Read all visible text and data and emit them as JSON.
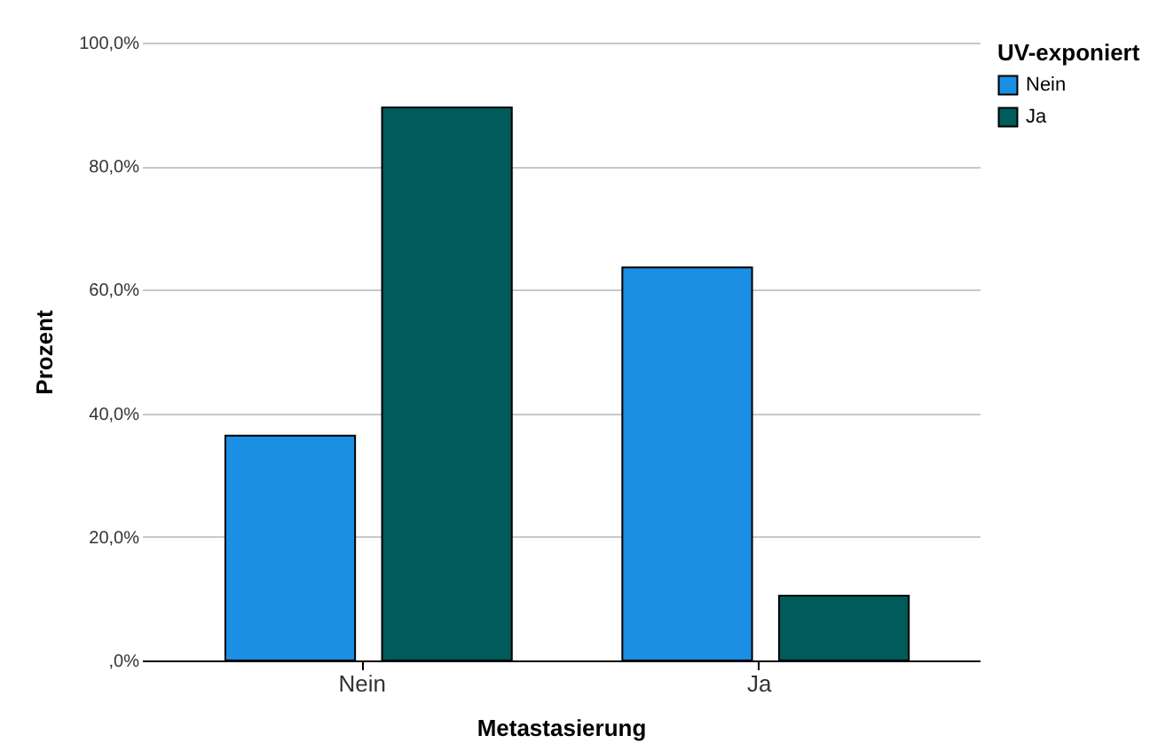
{
  "chart_data": {
    "type": "bar",
    "xlabel": "Metastasierung",
    "ylabel": "Prozent",
    "legend_title": "UV-exponiert",
    "categories": [
      "Nein",
      "Ja"
    ],
    "series": [
      {
        "name": "Nein",
        "color": "#1a8fe3",
        "values": [
          36.4,
          63.6
        ]
      },
      {
        "name": "Ja",
        "color": "#005b5b",
        "values": [
          89.5,
          10.5
        ]
      }
    ],
    "ylim": [
      0,
      100
    ],
    "yticks": [
      {
        "value": 0,
        "label": ",0%"
      },
      {
        "value": 20,
        "label": "20,0%"
      },
      {
        "value": 40,
        "label": "40,0%"
      },
      {
        "value": 60,
        "label": "60,0%"
      },
      {
        "value": 80,
        "label": "80,0%"
      },
      {
        "value": 100,
        "label": "100,0%"
      }
    ],
    "grid": "y",
    "legend": "top right"
  }
}
